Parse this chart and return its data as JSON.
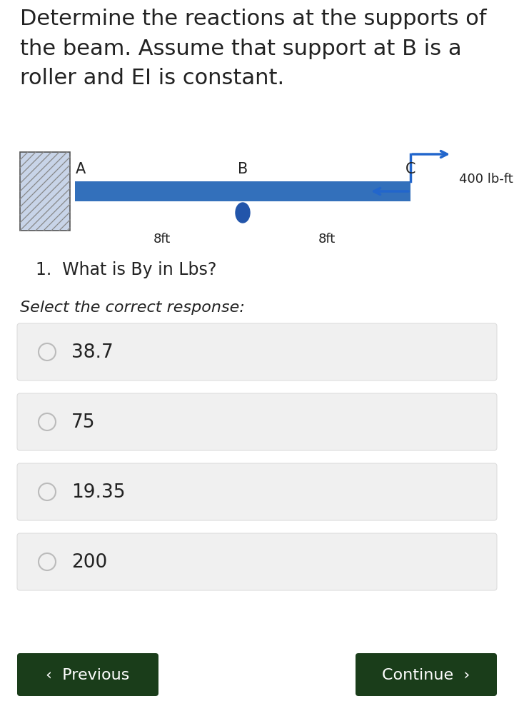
{
  "title_text": "Determine the reactions at the supports of\nthe beam. Assume that support at B is a\nroller and EI is constant.",
  "question_text": "1.  What is By in Lbs?",
  "select_text": "Select the correct response:",
  "options": [
    "38.7",
    "75",
    "19.35",
    "200"
  ],
  "bg_color": "#ffffff",
  "option_bg_color": "#f0f0f0",
  "option_text_color": "#222222",
  "title_color": "#222222",
  "beam_color": "#3370bb",
  "wall_fill_color": "#c8d4e8",
  "wall_edge_color": "#555555",
  "wall_hatch_color": "#888888",
  "roller_color": "#2255aa",
  "arrow_color": "#2266cc",
  "label_A": "A",
  "label_B": "B",
  "label_C": "C",
  "dist_AB": "8ft",
  "dist_BC": "8ft",
  "moment_label": "400 lb-ft",
  "btn_color": "#1a3d1a",
  "btn_text_color": "#ffffff",
  "prev_text": "‹  Previous",
  "cont_text": "Continue  ›",
  "title_fontsize": 22,
  "question_fontsize": 17,
  "select_fontsize": 16,
  "option_fontsize": 19,
  "btn_fontsize": 16,
  "diagram_label_fontsize": 15,
  "diagram_dist_fontsize": 13,
  "diagram_moment_fontsize": 13
}
